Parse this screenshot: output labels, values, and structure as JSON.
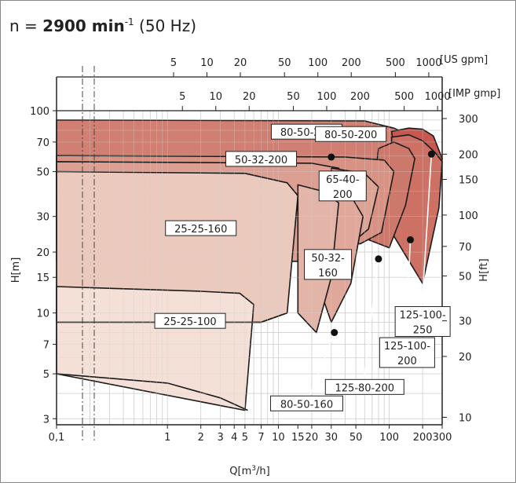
{
  "header": {
    "prefix": "n = ",
    "speed": "2900 min",
    "speed_exp": "-1",
    "freq": " (50 Hz)"
  },
  "chart_data": {
    "type": "area",
    "xlabel": "Q[m",
    "xlabel_exp": "3",
    "xlabel_suffix": "/h]",
    "ylabel_left": "H[m]",
    "ylabel_right": "H[ft]",
    "x_scale": "log",
    "y_scale": "log",
    "xlim": [
      0.1,
      300
    ],
    "ylim": [
      2.8,
      100
    ],
    "x_ticks": [
      {
        "v": 0.1,
        "label": "0,1"
      },
      {
        "v": 1,
        "label": "1"
      },
      {
        "v": 2,
        "label": "2"
      },
      {
        "v": 3,
        "label": "3"
      },
      {
        "v": 4,
        "label": "4"
      },
      {
        "v": 5,
        "label": "5"
      },
      {
        "v": 7,
        "label": "7"
      },
      {
        "v": 10,
        "label": "10"
      },
      {
        "v": 15,
        "label": "15"
      },
      {
        "v": 20,
        "label": "20"
      },
      {
        "v": 30,
        "label": "30"
      },
      {
        "v": 50,
        "label": "50"
      },
      {
        "v": 100,
        "label": "100"
      },
      {
        "v": 200,
        "label": "200"
      },
      {
        "v": 300,
        "label": "300"
      }
    ],
    "y_ticks": [
      {
        "v": 3,
        "label": "3"
      },
      {
        "v": 5,
        "label": "5"
      },
      {
        "v": 7,
        "label": "7"
      },
      {
        "v": 10,
        "label": "10"
      },
      {
        "v": 15,
        "label": "15"
      },
      {
        "v": 20,
        "label": "20"
      },
      {
        "v": 30,
        "label": "30"
      },
      {
        "v": 50,
        "label": "50"
      },
      {
        "v": 70,
        "label": "70"
      },
      {
        "v": 100,
        "label": "100"
      }
    ],
    "ft_ticks": [
      {
        "v": 10,
        "label": "10"
      },
      {
        "v": 20,
        "label": "20"
      },
      {
        "v": 30,
        "label": "30"
      },
      {
        "v": 50,
        "label": "50"
      },
      {
        "v": 70,
        "label": "70"
      },
      {
        "v": 100,
        "label": "100"
      },
      {
        "v": 150,
        "label": "150"
      },
      {
        "v": 200,
        "label": "200"
      },
      {
        "v": 300,
        "label": "300"
      }
    ],
    "us_gpm": {
      "label": "[US gpm]",
      "ticks": [
        {
          "v": 5,
          "label": "5"
        },
        {
          "v": 10,
          "label": "10"
        },
        {
          "v": 20,
          "label": "20"
        },
        {
          "v": 50,
          "label": "50"
        },
        {
          "v": 100,
          "label": "100"
        },
        {
          "v": 200,
          "label": "200"
        },
        {
          "v": 500,
          "label": "500"
        },
        {
          "v": 1000,
          "label": "1000"
        }
      ]
    },
    "imp_gpm": {
      "label": "[IMP gmp]",
      "ticks": [
        {
          "v": 5,
          "label": "5"
        },
        {
          "v": 10,
          "label": "10"
        },
        {
          "v": 20,
          "label": "20"
        },
        {
          "v": 50,
          "label": "50"
        },
        {
          "v": 100,
          "label": "100"
        },
        {
          "v": 200,
          "label": "200"
        },
        {
          "v": 500,
          "label": "500"
        },
        {
          "v": 1000,
          "label": "1000"
        }
      ]
    },
    "grid": true,
    "series": [
      {
        "name": "80-50-250",
        "color": "#d07f72",
        "outline": [
          [
            0.1,
            90
          ],
          [
            60,
            89
          ],
          [
            110,
            82
          ],
          [
            150,
            76
          ],
          [
            125,
            38
          ],
          [
            98,
            33
          ],
          [
            0.1,
            34
          ]
        ]
      },
      {
        "name": "125-100-250",
        "color": "#c8574f",
        "outline": [
          [
            105,
            79
          ],
          [
            150,
            82
          ],
          [
            200,
            81
          ],
          [
            250,
            75
          ],
          [
            300,
            58
          ],
          [
            250,
            36
          ],
          [
            180,
            24
          ],
          [
            120,
            45
          ]
        ]
      },
      {
        "name": "125-100-200",
        "color": "#cd7165",
        "outline": [
          [
            105,
            74
          ],
          [
            150,
            76
          ],
          [
            200,
            71
          ],
          [
            260,
            62
          ],
          [
            300,
            56
          ],
          [
            280,
            33
          ],
          [
            200,
            14
          ],
          [
            110,
            24
          ]
        ]
      },
      {
        "name": "125-80-200",
        "color": "#cc786b",
        "outline": [
          [
            80,
            65
          ],
          [
            110,
            70
          ],
          [
            150,
            65
          ],
          [
            170,
            58
          ],
          [
            140,
            34
          ],
          [
            100,
            21
          ],
          [
            65,
            23
          ]
        ]
      },
      {
        "name": "80-50-200",
        "color": "#d79283",
        "outline": [
          [
            0.1,
            60
          ],
          [
            40,
            59
          ],
          [
            90,
            57
          ],
          [
            110,
            50
          ],
          [
            85,
            25
          ],
          [
            55,
            22
          ],
          [
            0.1,
            22
          ]
        ]
      },
      {
        "name": "50-32-200",
        "color": "#dc9f92",
        "outline": [
          [
            0.1,
            56
          ],
          [
            20,
            55
          ],
          [
            35,
            52
          ],
          [
            45,
            44
          ],
          [
            38,
            21
          ],
          [
            25,
            18
          ],
          [
            0.1,
            18
          ]
        ]
      },
      {
        "name": "65-40-200",
        "color": "#dda395",
        "outline": [
          [
            30,
            52
          ],
          [
            60,
            49
          ],
          [
            80,
            42
          ],
          [
            65,
            26
          ],
          [
            45,
            22
          ],
          [
            30,
            24
          ]
        ]
      },
      {
        "name": "80-50-160",
        "color": "#dfa89b",
        "outline": [
          [
            25,
            40
          ],
          [
            45,
            38
          ],
          [
            58,
            30
          ],
          [
            45,
            14
          ],
          [
            30,
            9
          ],
          [
            25,
            12
          ]
        ]
      },
      {
        "name": "50-32-160",
        "color": "#e3b5a8",
        "outline": [
          [
            15,
            43
          ],
          [
            25,
            40
          ],
          [
            35,
            35
          ],
          [
            30,
            15
          ],
          [
            22,
            8
          ],
          [
            15,
            10
          ]
        ]
      },
      {
        "name": "25-25-160",
        "color": "#ecc9bd",
        "outline": [
          [
            0.1,
            50
          ],
          [
            5,
            49
          ],
          [
            12,
            44
          ],
          [
            15,
            38
          ],
          [
            12,
            10
          ],
          [
            7,
            9
          ],
          [
            0.1,
            9
          ]
        ]
      },
      {
        "name": "25-25-100",
        "color": "#f4e0d7",
        "outline": [
          [
            0.1,
            13.5
          ],
          [
            2,
            12.8
          ],
          [
            4.5,
            12.5
          ],
          [
            6,
            11
          ],
          [
            5,
            3.3
          ],
          [
            0.1,
            5
          ]
        ]
      }
    ],
    "boundary_lines": [
      [
        [
          0.1,
          5
        ],
        [
          1,
          4.5
        ],
        [
          3,
          3.8
        ],
        [
          5.3,
          3.3
        ]
      ],
      [
        [
          0.1,
          9
        ],
        [
          7,
          9
        ],
        [
          12,
          10
        ]
      ]
    ],
    "markers": [
      {
        "x": 30,
        "y": 59
      },
      {
        "x": 240,
        "y": 61
      },
      {
        "x": 80,
        "y": 18.5
      },
      {
        "x": 155,
        "y": 23
      },
      {
        "x": 32,
        "y": 8
      }
    ],
    "labels": [
      {
        "text": "80-50-250",
        "x": 18,
        "y": 75
      },
      {
        "text": "80-50-200",
        "x": 45,
        "y": 73
      },
      {
        "text": "50-32-200",
        "x": 7,
        "y": 55
      },
      {
        "text": "65-40-",
        "x": 38,
        "y": 44
      },
      {
        "text": "200",
        "x": 38,
        "y": 38
      },
      {
        "text": "25-25-160",
        "x": 2,
        "y": 25
      },
      {
        "text": "50-32-",
        "x": 28,
        "y": 18
      },
      {
        "text": "160",
        "x": 28,
        "y": 15
      },
      {
        "text": "25-25-100",
        "x": 1.6,
        "y": 8.7
      },
      {
        "text": "80-50-160",
        "x": 18,
        "y": 3.4
      },
      {
        "text": "125-80-200",
        "x": 60,
        "y": 4.1
      },
      {
        "text": "125-100-",
        "x": 145,
        "y": 6.6
      },
      {
        "text": "200",
        "x": 145,
        "y": 5.6
      },
      {
        "text": "125-100-",
        "x": 200,
        "y": 9.4
      },
      {
        "text": "250",
        "x": 200,
        "y": 8.0
      }
    ]
  }
}
